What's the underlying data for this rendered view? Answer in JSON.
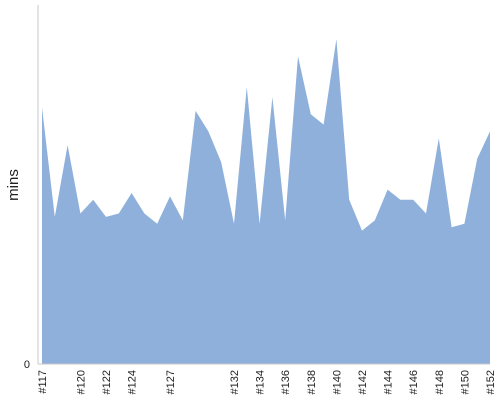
{
  "chart_data": {
    "type": "area",
    "ylabel": "mins",
    "xlabel": "",
    "title": "",
    "ylim": [
      0,
      100
    ],
    "grid": false,
    "legend": "none",
    "color": "#8eb0db",
    "y_tick_labels": [
      "0"
    ],
    "x": [
      "#117",
      "#118",
      "#119",
      "#120",
      "#121",
      "#122",
      "#123",
      "#124",
      "#125",
      "#126",
      "#127",
      "#128",
      "#129",
      "#130",
      "#131",
      "#132",
      "#133",
      "#134",
      "#135",
      "#136",
      "#137",
      "#138",
      "#139",
      "#140",
      "#141",
      "#142",
      "#143",
      "#144",
      "#145",
      "#146",
      "#147",
      "#148",
      "#149",
      "#150",
      "#151",
      "#152"
    ],
    "x_tick_labels": [
      "#117",
      "#120",
      "#122",
      "#124",
      "#127",
      "#132",
      "#134",
      "#136",
      "#138",
      "#140",
      "#142",
      "#144",
      "#146",
      "#148",
      "#150",
      "#152"
    ],
    "values": [
      75,
      43,
      64,
      44,
      48,
      43,
      44,
      50,
      44,
      41,
      49,
      42,
      74,
      68,
      59,
      41,
      81,
      41,
      78,
      42,
      90,
      73,
      70,
      95,
      48,
      39,
      42,
      51,
      48,
      48,
      44,
      66,
      40,
      41,
      60,
      68
    ]
  }
}
